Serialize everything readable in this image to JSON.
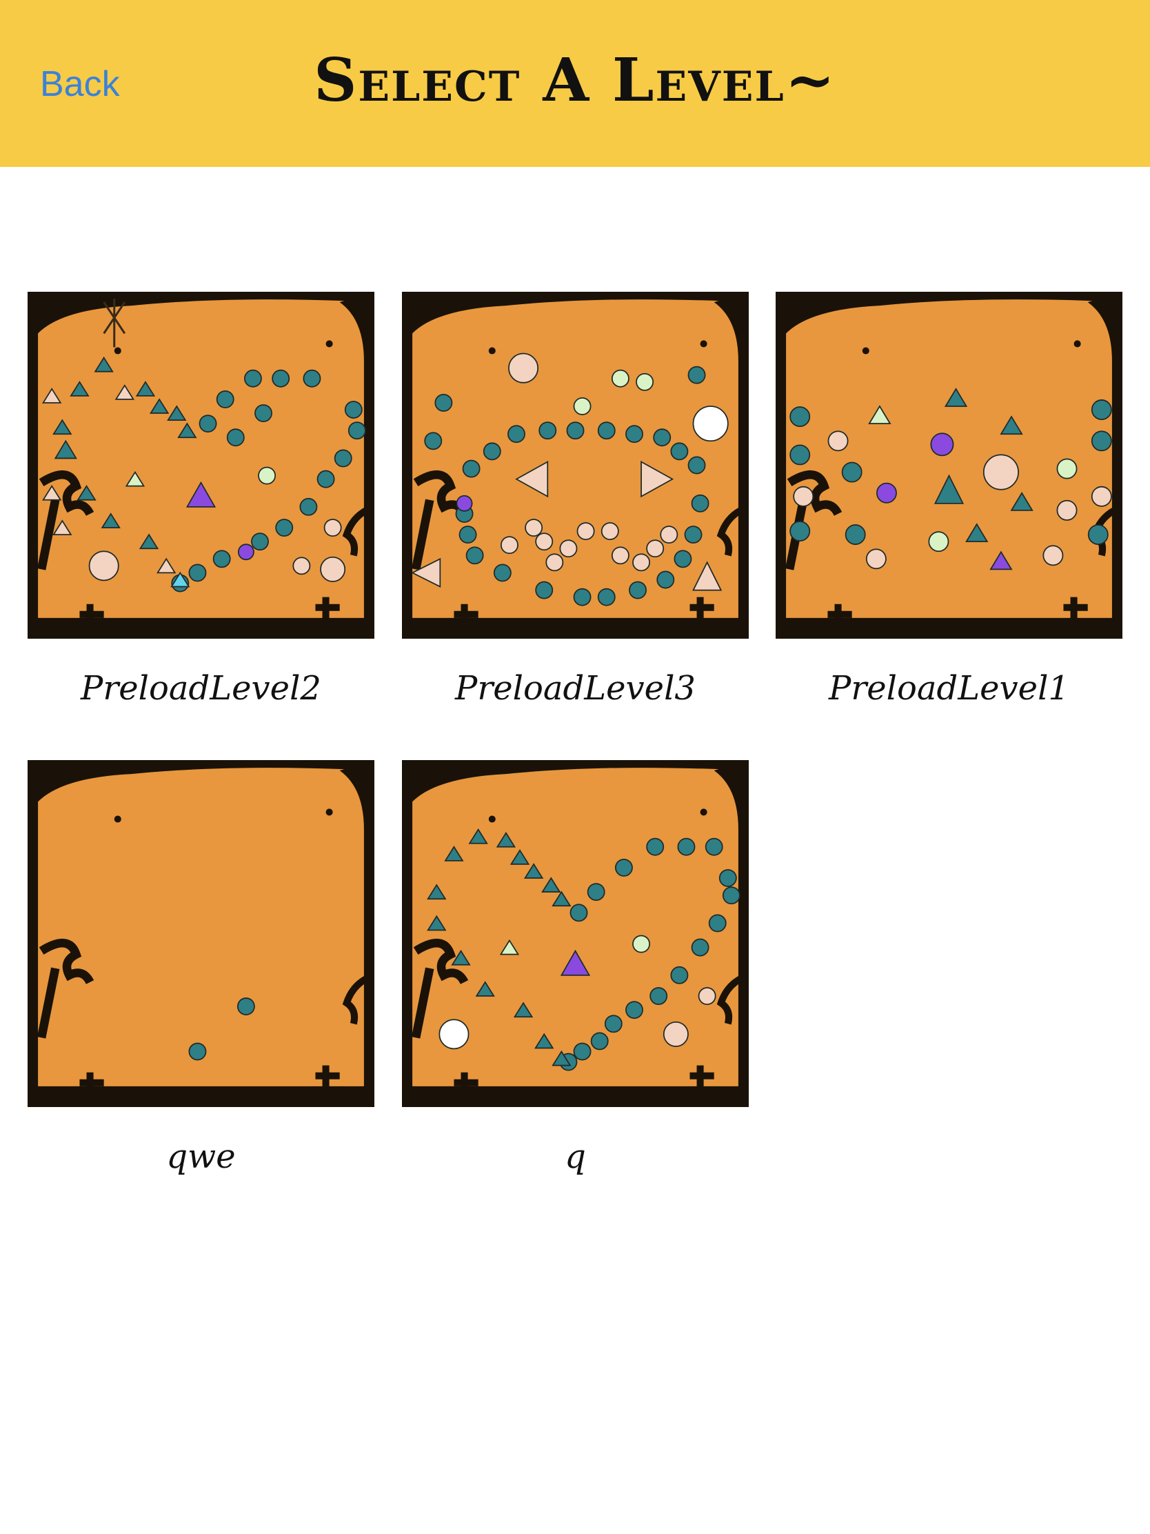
{
  "nav": {
    "back_label": "Back",
    "title": "Select A Level~"
  },
  "levels": [
    {
      "name": "PreloadLevel2"
    },
    {
      "name": "PreloadLevel3"
    },
    {
      "name": "PreloadLevel1"
    },
    {
      "name": "qwe"
    },
    {
      "name": "q"
    }
  ],
  "colors": {
    "nav_bar": "#f7cb46",
    "back_link": "#3b82d8",
    "thumb_background": "#e8973e",
    "peg_teal": "#2f7f86",
    "peg_peach": "#f3d3c1",
    "peg_mint": "#d9f3c6",
    "peg_purple": "#8a4ae0",
    "peg_white": "#ffffff",
    "peg_cyan": "#63d4ec"
  }
}
